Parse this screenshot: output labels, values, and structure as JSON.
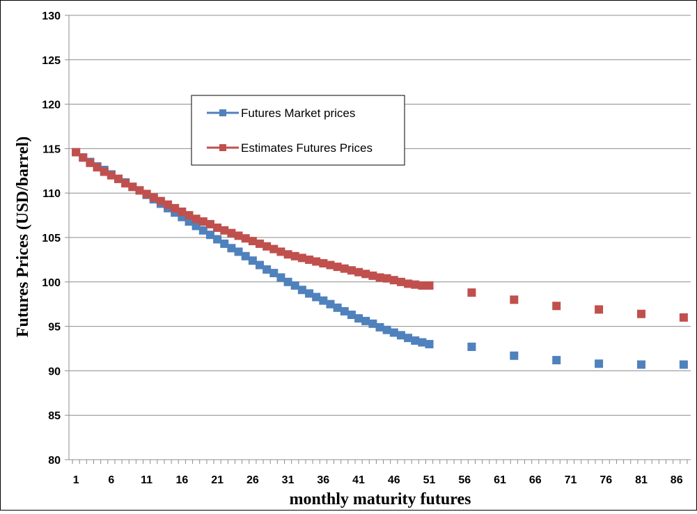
{
  "chart_data": {
    "type": "line",
    "xlabel": "monthly maturity futures",
    "ylabel": "Futures Prices (USD/barrel)",
    "ylim": [
      80,
      130
    ],
    "yticks": [
      80,
      85,
      90,
      95,
      100,
      105,
      110,
      115,
      120,
      125,
      130
    ],
    "xlim": [
      0,
      88
    ],
    "xtick_labels": [
      "1",
      "6",
      "11",
      "16",
      "21",
      "26",
      "31",
      "36",
      "41",
      "46",
      "51",
      "56",
      "61",
      "66",
      "71",
      "76",
      "81",
      "86"
    ],
    "grid": "horizontal",
    "legend_position": "upper-middle-left",
    "series": [
      {
        "name": "Futures Market prices",
        "color": "#4F81BD",
        "x": [
          1,
          2,
          3,
          4,
          5,
          6,
          7,
          8,
          9,
          10,
          11,
          12,
          13,
          14,
          15,
          16,
          17,
          18,
          19,
          20,
          21,
          22,
          23,
          24,
          25,
          26,
          27,
          28,
          29,
          30,
          31,
          32,
          33,
          34,
          35,
          36,
          37,
          38,
          39,
          40,
          41,
          42,
          43,
          44,
          45,
          46,
          47,
          48,
          49,
          50,
          51,
          57,
          63,
          69,
          75,
          81,
          87
        ],
        "values": [
          114.6,
          114.0,
          113.5,
          113.0,
          112.6,
          112.1,
          111.6,
          111.2,
          110.7,
          110.3,
          109.8,
          109.3,
          108.8,
          108.3,
          107.8,
          107.3,
          106.8,
          106.3,
          105.8,
          105.3,
          104.8,
          104.3,
          103.8,
          103.4,
          102.9,
          102.4,
          101.9,
          101.4,
          101.0,
          100.5,
          100.0,
          99.6,
          99.1,
          98.7,
          98.3,
          97.9,
          97.5,
          97.1,
          96.7,
          96.3,
          95.9,
          95.6,
          95.3,
          94.9,
          94.6,
          94.3,
          94.0,
          93.7,
          93.4,
          93.2,
          93.0,
          92.7,
          91.7,
          91.2,
          90.8,
          90.7,
          90.7
        ]
      },
      {
        "name": "Estimates Futures Prices",
        "color": "#C0504D",
        "x": [
          1,
          2,
          3,
          4,
          5,
          6,
          7,
          8,
          9,
          10,
          11,
          12,
          13,
          14,
          15,
          16,
          17,
          18,
          19,
          20,
          21,
          22,
          23,
          24,
          25,
          26,
          27,
          28,
          29,
          30,
          31,
          32,
          33,
          34,
          35,
          36,
          37,
          38,
          39,
          40,
          41,
          42,
          43,
          44,
          45,
          46,
          47,
          48,
          49,
          50,
          51,
          57,
          63,
          69,
          75,
          81,
          87
        ],
        "values": [
          114.6,
          114.0,
          113.4,
          112.9,
          112.4,
          112.0,
          111.6,
          111.1,
          110.7,
          110.3,
          109.9,
          109.5,
          109.1,
          108.7,
          108.3,
          107.9,
          107.5,
          107.1,
          106.8,
          106.5,
          106.1,
          105.8,
          105.5,
          105.2,
          104.9,
          104.6,
          104.3,
          104.0,
          103.7,
          103.4,
          103.1,
          102.9,
          102.7,
          102.5,
          102.3,
          102.1,
          101.9,
          101.7,
          101.5,
          101.3,
          101.1,
          100.9,
          100.7,
          100.5,
          100.4,
          100.2,
          100.0,
          99.8,
          99.7,
          99.6,
          99.6,
          98.8,
          98.0,
          97.3,
          96.9,
          96.4,
          96.0
        ]
      }
    ]
  }
}
